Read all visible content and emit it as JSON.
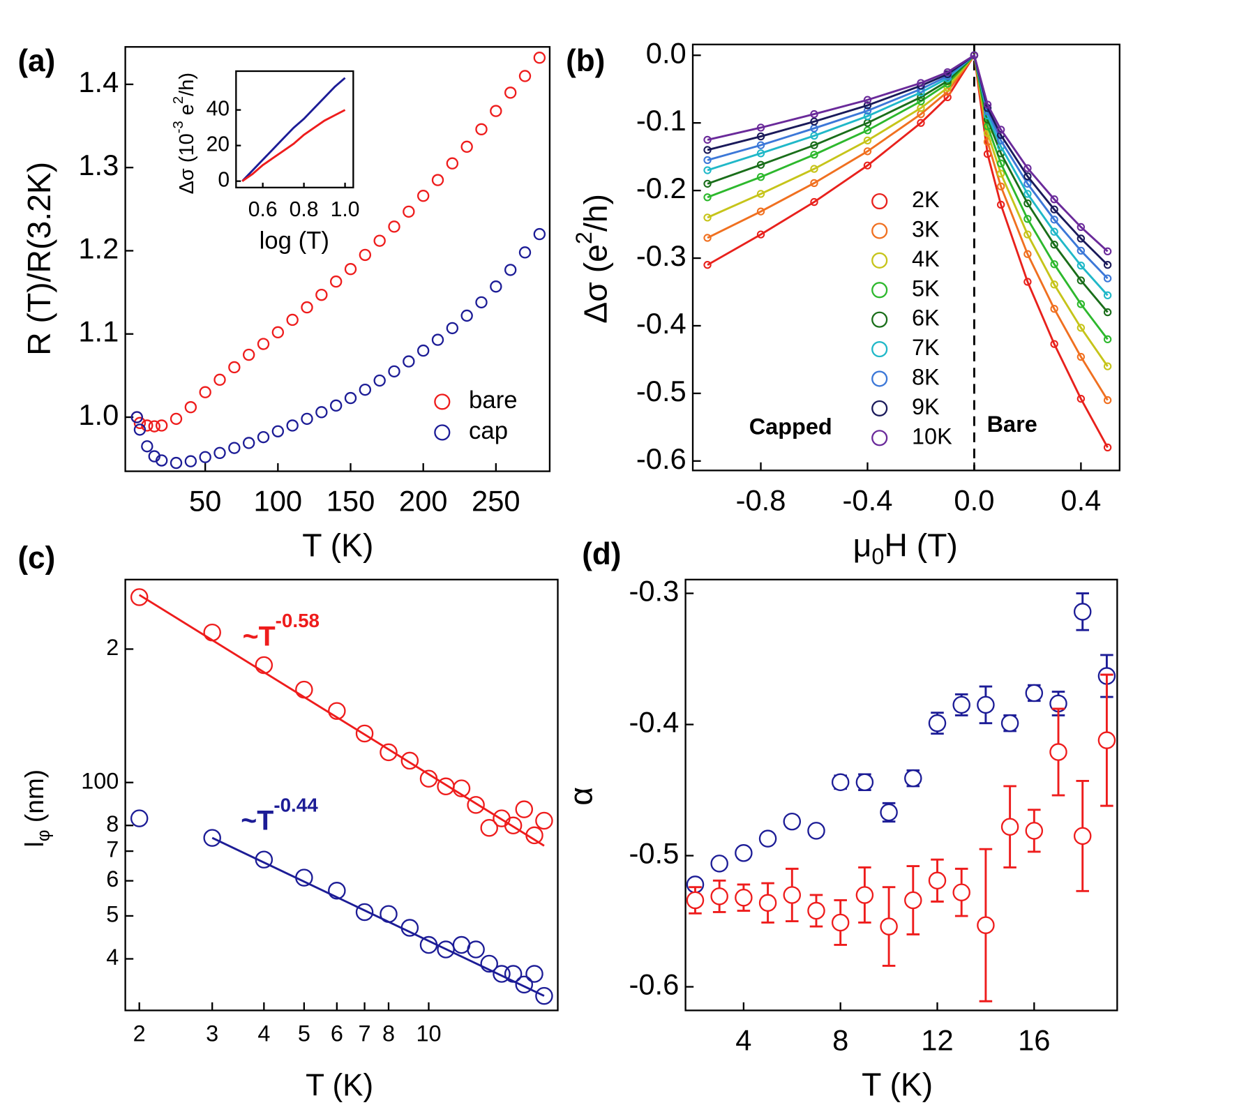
{
  "chart_data": [
    {
      "type": "scatter",
      "panel_label": "(a)",
      "xlabel": [
        "T (K)"
      ],
      "ylabel": [
        "R (T)/R(3.2K)"
      ],
      "x": [
        3,
        5,
        10,
        15,
        20,
        30,
        40,
        50,
        60,
        70,
        80,
        90,
        100,
        110,
        120,
        130,
        140,
        150,
        160,
        170,
        180,
        190,
        200,
        210,
        220,
        230,
        240,
        250,
        260,
        270,
        280
      ],
      "series": [
        {
          "name": "bare",
          "color": "#ee1c1c",
          "values": [
            1.0,
            0.993,
            0.99,
            0.989,
            0.99,
            0.998,
            1.012,
            1.03,
            1.045,
            1.06,
            1.075,
            1.088,
            1.102,
            1.117,
            1.132,
            1.147,
            1.163,
            1.178,
            1.195,
            1.212,
            1.229,
            1.247,
            1.266,
            1.285,
            1.305,
            1.325,
            1.346,
            1.368,
            1.39,
            1.41,
            1.432
          ]
        },
        {
          "name": "cap",
          "color": "#1c1c96",
          "values": [
            1.0,
            0.985,
            0.965,
            0.953,
            0.948,
            0.945,
            0.947,
            0.952,
            0.957,
            0.963,
            0.969,
            0.976,
            0.983,
            0.99,
            0.998,
            1.006,
            1.014,
            1.023,
            1.033,
            1.044,
            1.055,
            1.067,
            1.08,
            1.093,
            1.107,
            1.122,
            1.138,
            1.157,
            1.177,
            1.198,
            1.22
          ]
        }
      ],
      "xlim": [
        -5,
        287
      ],
      "ylim": [
        0.935,
        1.445
      ],
      "xticks": [
        50,
        100,
        150,
        200,
        250
      ],
      "yticks": [
        {
          "value": 1.0,
          "label": "1.0"
        },
        1.1,
        1.2,
        1.3,
        1.4
      ]
    },
    {
      "type": "line",
      "xlabel": [
        "log (T)"
      ],
      "ylabel": [
        "Δσ (10",
        "-3",
        " e",
        "2",
        "/h)"
      ],
      "x": [
        0.5,
        0.55,
        0.6,
        0.65,
        0.7,
        0.75,
        0.8,
        0.85,
        0.9,
        0.95,
        1.0
      ],
      "series": [
        {
          "color": "#1c1c96",
          "values": [
            0,
            6,
            12,
            18,
            24,
            30,
            35,
            41,
            47,
            53,
            58
          ]
        },
        {
          "color": "#ee1c1c",
          "values": [
            0,
            4,
            9,
            13,
            17,
            21,
            26,
            30,
            34,
            37,
            40
          ]
        }
      ],
      "xlim": [
        0.47,
        1.04
      ],
      "ylim": [
        -3.6,
        61.8
      ],
      "xticks": [
        0.6,
        0.8,
        {
          "value": 1.0,
          "label": "1.0"
        }
      ],
      "yticks": [
        0,
        20,
        40
      ]
    },
    {
      "type": "line",
      "panel_label": "(b)",
      "xlabel": [
        "μ",
        "0",
        "H (T)"
      ],
      "ylabel": [
        "Δσ (e",
        "2",
        "/h)"
      ],
      "annotations": [
        "Capped",
        "Bare"
      ],
      "vline": 0,
      "x": [
        -1.0,
        -0.8,
        -0.6,
        -0.4,
        -0.2,
        -0.1,
        0,
        0.05,
        0.1,
        0.2,
        0.3,
        0.4,
        0.5
      ],
      "series": [
        {
          "name": "2K",
          "color": "#e8211c",
          "values": [
            -0.31,
            -0.265,
            -0.217,
            -0.163,
            -0.1,
            -0.062,
            0,
            -0.146,
            -0.221,
            -0.335,
            -0.427,
            -0.508,
            -0.58
          ]
        },
        {
          "name": "3K",
          "color": "#f07020",
          "values": [
            -0.27,
            -0.231,
            -0.189,
            -0.142,
            -0.087,
            -0.054,
            0,
            -0.128,
            -0.194,
            -0.294,
            -0.375,
            -0.446,
            -0.51
          ]
        },
        {
          "name": "4K",
          "color": "#c6c41a",
          "values": [
            -0.24,
            -0.205,
            -0.168,
            -0.126,
            -0.078,
            -0.048,
            0,
            -0.115,
            -0.175,
            -0.265,
            -0.339,
            -0.403,
            -0.46
          ]
        },
        {
          "name": "5K",
          "color": "#2db82d",
          "values": [
            -0.21,
            -0.18,
            -0.147,
            -0.111,
            -0.068,
            -0.042,
            0,
            -0.105,
            -0.16,
            -0.242,
            -0.309,
            -0.368,
            -0.42
          ]
        },
        {
          "name": "6K",
          "color": "#1a6e1a",
          "values": [
            -0.19,
            -0.162,
            -0.133,
            -0.1,
            -0.062,
            -0.038,
            0,
            -0.095,
            -0.145,
            -0.219,
            -0.28,
            -0.333,
            -0.38
          ]
        },
        {
          "name": "7K",
          "color": "#20b8c8",
          "values": [
            -0.17,
            -0.145,
            -0.119,
            -0.09,
            -0.055,
            -0.034,
            0,
            -0.089,
            -0.135,
            -0.205,
            -0.261,
            -0.311,
            -0.355
          ]
        },
        {
          "name": "8K",
          "color": "#3c78d8",
          "values": [
            -0.155,
            -0.133,
            -0.108,
            -0.082,
            -0.05,
            -0.031,
            0,
            -0.083,
            -0.126,
            -0.19,
            -0.243,
            -0.289,
            -0.33
          ]
        },
        {
          "name": "9K",
          "color": "#1a1a5a",
          "values": [
            -0.14,
            -0.12,
            -0.098,
            -0.074,
            -0.045,
            -0.028,
            0,
            -0.078,
            -0.118,
            -0.179,
            -0.228,
            -0.271,
            -0.31
          ]
        },
        {
          "name": "10K",
          "color": "#6a2a9a",
          "values": [
            -0.125,
            -0.107,
            -0.087,
            -0.066,
            -0.041,
            -0.025,
            0,
            -0.073,
            -0.11,
            -0.167,
            -0.213,
            -0.254,
            -0.29
          ]
        }
      ],
      "xlim": [
        -1.055,
        0.545
      ],
      "ylim": [
        -0.614,
        0.016
      ],
      "xticks": [
        -0.8,
        -0.4,
        {
          "value": 0,
          "label": "0.0"
        },
        0.4
      ],
      "yticks": [
        {
          "value": 0,
          "label": "0.0"
        },
        -0.1,
        -0.2,
        -0.3,
        -0.4,
        -0.5,
        -0.6
      ]
    },
    {
      "type": "scatter",
      "panel_label": "(c)",
      "xlabel": [
        "T (K)"
      ],
      "ylabel": [
        "l",
        "φ",
        " (nm)"
      ],
      "xscale": "log",
      "yscale": "log",
      "annotations": [
        {
          "text": "~T",
          "exponent": "-0.58",
          "color": "#ee1c1c"
        },
        {
          "text": "~T",
          "exponent": "-0.44",
          "color": "#1c1c96"
        }
      ],
      "x": [
        2,
        3,
        4,
        5,
        6,
        7,
        8,
        9,
        10,
        11,
        12,
        13,
        14,
        15,
        16,
        17,
        18,
        19
      ],
      "series": [
        {
          "color": "#ee1c1c",
          "values": [
            262,
            218,
            184,
            162,
            145,
            129,
            117,
            112,
            102,
            98,
            97,
            89,
            79,
            83,
            80,
            87,
            76,
            82
          ]
        },
        {
          "color": "#1c1c96",
          "values": [
            83,
            75,
            67,
            61,
            57,
            51,
            50.5,
            47,
            43,
            42,
            43,
            42,
            39,
            37,
            37,
            35,
            37,
            33
          ]
        }
      ],
      "fits": [
        {
          "color": "#ee1c1c",
          "x": [
            2,
            19
          ],
          "values": [
            265,
            72
          ]
        },
        {
          "color": "#1c1c96",
          "x": [
            3,
            19
          ],
          "values": [
            75,
            33
          ]
        }
      ],
      "xlim": [
        1.85,
        20.5
      ],
      "ylim": [
        30.6,
        287
      ],
      "xticks": [
        2,
        3,
        4,
        5,
        6,
        7,
        8,
        10
      ],
      "yticks": [
        {
          "value": 200,
          "label": "2"
        },
        100,
        {
          "value": 80,
          "label": "8"
        },
        {
          "value": 70,
          "label": "7"
        },
        {
          "value": 60,
          "label": "6"
        },
        {
          "value": 50,
          "label": "5"
        },
        {
          "value": 40,
          "label": "4"
        }
      ]
    },
    {
      "type": "scatter",
      "panel_label": "(d)",
      "xlabel": [
        "T (K)"
      ],
      "ylabel": [
        "α"
      ],
      "x": [
        2,
        3,
        4,
        5,
        6,
        7,
        8,
        9,
        10,
        11,
        12,
        13,
        14,
        15,
        16,
        17,
        18,
        19
      ],
      "series": [
        {
          "color": "#1c1c96",
          "values": [
            -0.522,
            -0.506,
            -0.498,
            -0.487,
            -0.474,
            -0.481,
            -0.444,
            -0.444,
            -0.467,
            -0.441,
            -0.399,
            -0.385,
            -0.385,
            -0.399,
            -0.376,
            -0.384,
            -0.314,
            -0.363
          ],
          "errors": [
            0.003,
            0,
            0,
            0,
            0,
            0,
            0.005,
            0.006,
            0.007,
            0.006,
            0.008,
            0.008,
            0.014,
            0.006,
            0.006,
            0.009,
            0.014,
            0.016
          ]
        },
        {
          "color": "#ee1c1c",
          "values": [
            -0.534,
            -0.531,
            -0.532,
            -0.536,
            -0.53,
            -0.542,
            -0.551,
            -0.53,
            -0.554,
            -0.534,
            -0.519,
            -0.528,
            -0.553,
            -0.478,
            -0.481,
            -0.421,
            -0.485,
            -0.412
          ],
          "errors": [
            0.01,
            0.012,
            0.01,
            0.015,
            0.02,
            0.012,
            0.017,
            0.021,
            0.03,
            0.026,
            0.016,
            0.018,
            0.058,
            0.031,
            0.016,
            0.033,
            0.042,
            0.05
          ]
        }
      ],
      "xlim": [
        1.6,
        19.43
      ],
      "ylim": [
        -0.618,
        -0.2895
      ],
      "xticks": [
        4,
        8,
        12,
        16
      ],
      "yticks": [
        -0.3,
        -0.4,
        -0.5,
        -0.6
      ]
    }
  ]
}
